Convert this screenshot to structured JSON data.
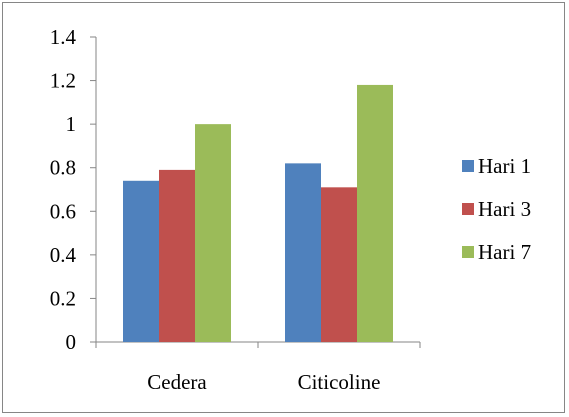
{
  "chart_data": {
    "type": "bar",
    "categories": [
      "Cedera",
      "Citicoline"
    ],
    "series": [
      {
        "name": "Hari 1",
        "values": [
          0.74,
          0.82
        ],
        "color": "#4f81bd"
      },
      {
        "name": "Hari 3",
        "values": [
          0.79,
          0.71
        ],
        "color": "#c0504d"
      },
      {
        "name": "Hari 7",
        "values": [
          1.0,
          1.18
        ],
        "color": "#9bbb59"
      }
    ],
    "title": "",
    "xlabel": "",
    "ylabel": "",
    "ylim": [
      0,
      1.4
    ],
    "yticks": [
      "0",
      "0.2",
      "0.4",
      "0.6",
      "0.8",
      "1",
      "1.2",
      "1.4"
    ],
    "grid": false,
    "legend_position": "right"
  }
}
